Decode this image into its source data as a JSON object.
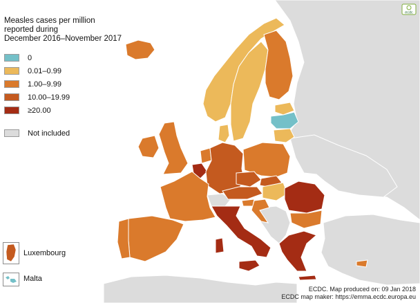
{
  "legend": {
    "title_lines": [
      "Measles cases per million",
      "reported during",
      "December 2016–November 2017"
    ],
    "items": [
      {
        "label": "0",
        "color": "#74c0c8"
      },
      {
        "label": "0.01–0.99",
        "color": "#ecb95a"
      },
      {
        "label": "1.00–9.99",
        "color": "#da7a2c"
      },
      {
        "label": "10.00–19.99",
        "color": "#c45a1f"
      },
      {
        "label": "≥20.00",
        "color": "#a42c14"
      }
    ],
    "not_included": {
      "label": "Not included",
      "color": "#dcdcdc"
    }
  },
  "insets": {
    "luxembourg": {
      "label": "Luxembourg",
      "color": "#c45a1f"
    },
    "malta": {
      "label": "Malta",
      "color": "#74c0c8"
    }
  },
  "credits": {
    "line1": "ECDC. Map produced on: 09 Jan 2018",
    "line2": "ECDC map maker: https://emma.ecdc.europa.eu"
  },
  "logo": {
    "text": "ecdc",
    "icon": "ecdc-logo-icon"
  },
  "map": {
    "sea_color": "#ffffff",
    "border_color": "#ffffff",
    "countries": {
      "iceland": "#da7a2c",
      "norway": "#ecb95a",
      "sweden": "#ecb95a",
      "finland": "#da7a2c",
      "estonia": "#ecb95a",
      "latvia": "#74c0c8",
      "lithuania": "#ecb95a",
      "denmark": "#ecb95a",
      "ireland": "#da7a2c",
      "united_kingdom": "#da7a2c",
      "netherlands": "#da7a2c",
      "belgium": "#a42c14",
      "luxembourg": "#c45a1f",
      "germany": "#c45a1f",
      "poland": "#da7a2c",
      "czechia": "#c45a1f",
      "slovakia": "#c45a1f",
      "austria": "#c45a1f",
      "hungary": "#ecb95a",
      "slovenia": "#da7a2c",
      "croatia": "#da7a2c",
      "romania": "#a42c14",
      "bulgaria": "#da7a2c",
      "greece": "#a42c14",
      "italy": "#a42c14",
      "france": "#da7a2c",
      "spain": "#da7a2c",
      "portugal": "#da7a2c",
      "cyprus": "#da7a2c",
      "malta": "#74c0c8"
    },
    "not_included_countries": [
      "switzerland",
      "balkans",
      "belarus",
      "ukraine",
      "russia",
      "turkey",
      "north_africa",
      "moldova"
    ]
  }
}
